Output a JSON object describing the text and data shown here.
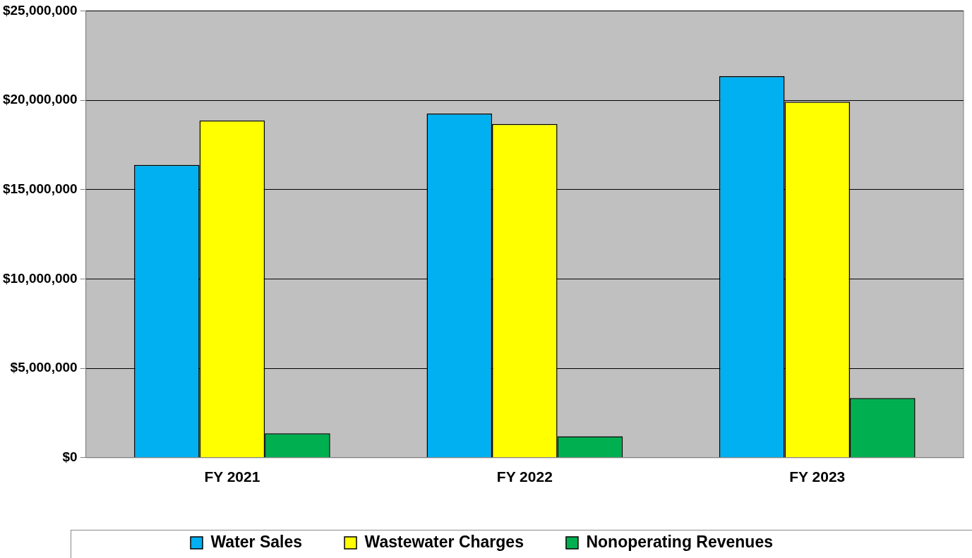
{
  "chart_data": {
    "type": "bar",
    "categories": [
      "FY 2021",
      "FY 2022",
      "FY 2023"
    ],
    "series": [
      {
        "name": "Water Sales",
        "color": "#00b0f0",
        "values": [
          16380000,
          19250000,
          21350000
        ]
      },
      {
        "name": "Wastewater Charges",
        "color": "#ffff00",
        "values": [
          18870000,
          18670000,
          19910000
        ]
      },
      {
        "name": "Nonoperating Revenues",
        "color": "#00b050",
        "values": [
          1360000,
          1200000,
          3340000
        ]
      }
    ],
    "ylim": [
      0,
      25000000
    ],
    "yticks": [
      {
        "value": 0,
        "label": "$0"
      },
      {
        "value": 5000000,
        "label": "$5,000,000"
      },
      {
        "value": 10000000,
        "label": "$10,000,000"
      },
      {
        "value": 15000000,
        "label": "$15,000,000"
      },
      {
        "value": 20000000,
        "label": "$20,000,000"
      },
      {
        "value": 25000000,
        "label": "$25,000,000"
      }
    ],
    "grid": "y",
    "legend": "bottom"
  }
}
